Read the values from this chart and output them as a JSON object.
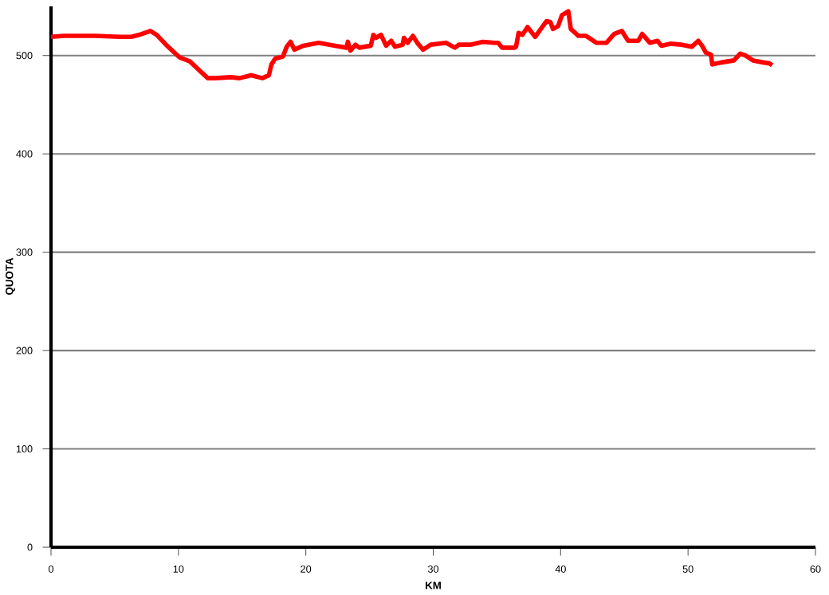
{
  "chart_data": {
    "type": "line",
    "xlabel": "KM",
    "ylabel": "QUOTA",
    "x": [
      0,
      1,
      2.3,
      3.5,
      5.4,
      6.3,
      6.9,
      7.8,
      8.3,
      9.1,
      10.1,
      10.9,
      12.3,
      12.9,
      14.1,
      14.8,
      15.7,
      16.6,
      17.1,
      17.3,
      17.6,
      18.2,
      18.5,
      18.8,
      19.1,
      19.8,
      21,
      22.3,
      23.2,
      23.3,
      23.5,
      23.9,
      24.2,
      25.1,
      25.3,
      25.5,
      25.9,
      26.3,
      26.7,
      27,
      27.6,
      27.7,
      28,
      28.4,
      28.8,
      29.2,
      29.8,
      31,
      31.7,
      32,
      32.9,
      33.9,
      34.8,
      35.1,
      35.4,
      36.4,
      36.5,
      36.7,
      37,
      37.4,
      38,
      38.5,
      38.9,
      39.2,
      39.4,
      39.8,
      40.1,
      40.6,
      40.8,
      41.4,
      42,
      42.8,
      43.6,
      44.2,
      44.8,
      45.3,
      46.1,
      46.4,
      47,
      47.6,
      47.9,
      48.6,
      49.5,
      50.3,
      50.8,
      51.1,
      51.4,
      51.8,
      51.9,
      52.6,
      53.6,
      54.1,
      54.5,
      55.1,
      55.9,
      56.4,
      56.6
    ],
    "series": [
      {
        "color": "#ff0000",
        "values": [
          519,
          520,
          520,
          520,
          519,
          519,
          521,
          525,
          521,
          510,
          498,
          494,
          477,
          477,
          478,
          477,
          480,
          477,
          480,
          491,
          497,
          499,
          509,
          514,
          506,
          510,
          513,
          510,
          508,
          514,
          505,
          511,
          508,
          510,
          521,
          518,
          521,
          510,
          515,
          509,
          511,
          518,
          513,
          520,
          512,
          506,
          511,
          513,
          508,
          511,
          511,
          514,
          513,
          513,
          508,
          508,
          509,
          523,
          521,
          529,
          519,
          528,
          535,
          534,
          527,
          530,
          541,
          545,
          527,
          520,
          520,
          513,
          513,
          522,
          525,
          515,
          515,
          522,
          513,
          515,
          510,
          512,
          511,
          509,
          515,
          510,
          503,
          501,
          491,
          493,
          495,
          502,
          500,
          495,
          493,
          492,
          490
        ]
      }
    ],
    "xlim": [
      0,
      60
    ],
    "xticks": [
      0,
      10,
      20,
      30,
      40,
      50,
      60
    ],
    "ylim": [
      0,
      550
    ],
    "yticks": [
      0,
      100,
      200,
      300,
      400,
      500
    ],
    "grid": "y",
    "line_style": "solid",
    "marker": "none"
  }
}
